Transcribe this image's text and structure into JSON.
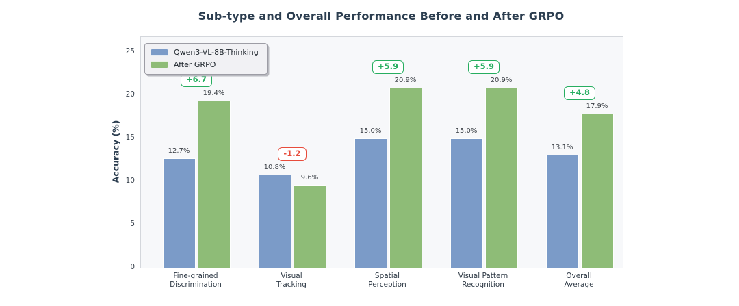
{
  "figure": {
    "background": "#ffffff",
    "plot_background": "#f7f8fa",
    "title_color": "#2c3e50",
    "axis_text_color": "#39424d",
    "value_label_color": "#3b4046"
  },
  "chart_data": {
    "type": "bar",
    "title": "Sub-type and Overall Performance Before and After GRPO",
    "xlabel": "",
    "ylabel": "Accuracy (%)",
    "ylim": [
      0,
      26.75
    ],
    "yticks": [
      0,
      5,
      10,
      15,
      20,
      25
    ],
    "grid": false,
    "legend_position": "upper-left",
    "categories": [
      "Fine-grained\nDiscrimination",
      "Visual\nTracking",
      "Spatial\nPerception",
      "Visual Pattern\nRecognition",
      "Overall\nAverage"
    ],
    "series": [
      {
        "name": "Qwen3-VL-8B-Thinking",
        "color": "#7b9bc8",
        "values": [
          12.7,
          10.8,
          15.0,
          15.0,
          13.1
        ],
        "labels": [
          "12.7%",
          "10.8%",
          "15.0%",
          "15.0%",
          "13.1%"
        ]
      },
      {
        "name": "After GRPO",
        "color": "#8ebc77",
        "values": [
          19.4,
          9.6,
          20.9,
          20.9,
          17.9
        ],
        "labels": [
          "19.4%",
          "9.6%",
          "20.9%",
          "20.9%",
          "17.9%"
        ]
      }
    ],
    "deltas": [
      {
        "label": "+6.7",
        "positive": true
      },
      {
        "label": "-1.2",
        "positive": false
      },
      {
        "label": "+5.9",
        "positive": true
      },
      {
        "label": "+5.9",
        "positive": true
      },
      {
        "label": "+4.8",
        "positive": true
      }
    ],
    "delta_colors": {
      "positive": "#27ae60",
      "negative": "#e74c3c"
    }
  }
}
